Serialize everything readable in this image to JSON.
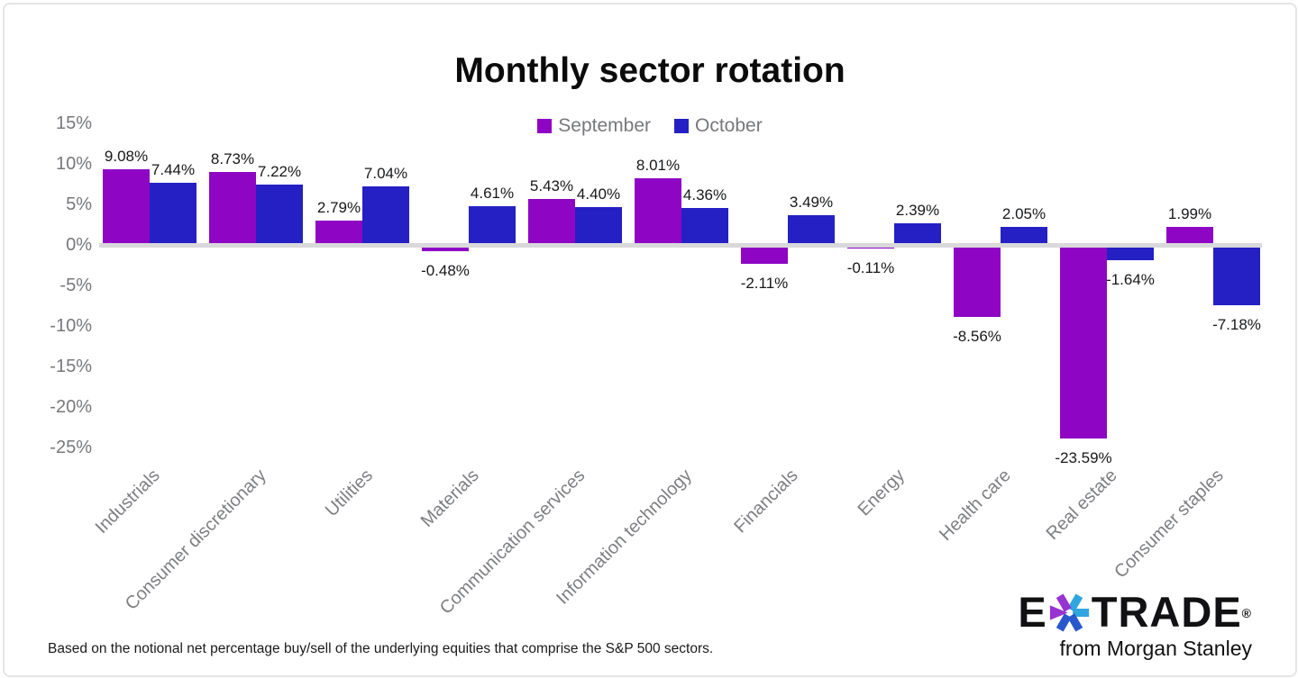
{
  "title": "Monthly sector rotation",
  "chart_data": {
    "type": "bar",
    "title": "Monthly sector rotation",
    "categories": [
      "Industrials",
      "Consumer discretionary",
      "Utilities",
      "Materials",
      "Communication services",
      "Information technology",
      "Financials",
      "Energy",
      "Health care",
      "Real estate",
      "Consumer staples"
    ],
    "series": [
      {
        "name": "September",
        "color": "#8e06c4",
        "values": [
          9.08,
          8.73,
          2.79,
          -0.48,
          5.43,
          8.01,
          -2.11,
          -0.11,
          -8.56,
          -23.59,
          1.99
        ]
      },
      {
        "name": "October",
        "color": "#2520c4",
        "values": [
          7.44,
          7.22,
          7.04,
          4.61,
          4.4,
          4.36,
          3.49,
          2.39,
          2.05,
          -1.64,
          -7.18
        ]
      }
    ],
    "value_label_format": "0.00%",
    "y_ticks": [
      15,
      10,
      5,
      0,
      -5,
      -10,
      -15,
      -20,
      -25
    ],
    "ylim": [
      -25,
      15
    ],
    "grid": "zero-line-only",
    "legend_position": "top-center",
    "xlabel": "",
    "ylabel": ""
  },
  "footer": {
    "note": "Based on the notional net percentage buy/sell of the underlying equities that comprise the S&P 500 sectors."
  },
  "logo": {
    "prefix": "E",
    "suffix": "TRADE",
    "registered": "®",
    "tagline": "from Morgan Stanley",
    "asterisk_icon": "etrade-asterisk",
    "asterisk_colors": {
      "purple": "#9633d1",
      "cyan": "#31a5df",
      "blue": "#2a57cb"
    }
  },
  "colors": {
    "september_bar": "#8e06c4",
    "october_bar": "#2520c4",
    "axis_text": "#77787c",
    "category_text": "#7e7f83",
    "value_text": "#17181a",
    "zero_line": "#d9d9db",
    "card_border": "#e4e5e7",
    "background": "#ffffff"
  }
}
